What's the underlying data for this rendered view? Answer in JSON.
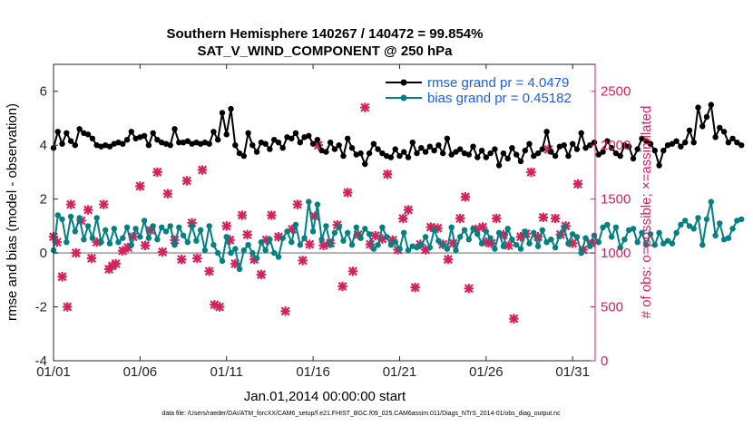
{
  "figure": {
    "title_line1": "Southern Hemisphere 140267 / 140472 = 99.854%",
    "title_line2": "SAT_V_WIND_COMPONENT @ 250 hPa",
    "footnote": "data file: /Users/raeder/DAI/ATM_forcXX/CAM6_setup/f.e21.FHIST_BGC.f09_025.CAM6assim.011/Diags_NTrS_2014-01/obs_diag_output.nc"
  },
  "chart_data": {
    "type": "line",
    "xlabel": "Jan.01,2014 00:00:00 start",
    "ylabel": "rmse and bias (model - observation)",
    "y2label": "# of obs: o=possible; ×=assimilated",
    "xlim": [
      1,
      32.3
    ],
    "ylim": [
      -4,
      7
    ],
    "y2lim": [
      0,
      2750
    ],
    "x_ticks": [
      1,
      6,
      11,
      16,
      21,
      26,
      31
    ],
    "x_tick_labels": [
      "01/01",
      "01/06",
      "01/11",
      "01/16",
      "01/21",
      "01/26",
      "01/31"
    ],
    "y_ticks": [
      -4,
      -2,
      0,
      2,
      4,
      6
    ],
    "y2_ticks": [
      0,
      500,
      1000,
      1500,
      2000,
      2500
    ],
    "grid": false,
    "zero_line": true,
    "legend_position": "top-right",
    "colors": {
      "rmse": "#000000",
      "bias": "#008080",
      "obs": "#d6225a",
      "legend_text": "#1f5fd6",
      "right_axis": "#d6225a",
      "zero_line": "#b0b0b0"
    },
    "legend": [
      "rmse grand pr = 4.0479",
      "bias grand pr = 0.45182"
    ],
    "series": [
      {
        "name": "rmse grand pr = 4.0479",
        "axis": "left",
        "x_start": 1.0,
        "x_step": 0.25,
        "values": [
          3.9,
          4.5,
          4.05,
          4.45,
          4.15,
          4.0,
          4.6,
          4.45,
          4.4,
          4.25,
          4.0,
          3.95,
          4.0,
          3.95,
          4.05,
          4.1,
          4.05,
          4.2,
          4.5,
          4.25,
          4.3,
          4.35,
          4.0,
          4.45,
          4.2,
          4.1,
          4.05,
          4.0,
          4.6,
          4.1,
          4.1,
          4.15,
          4.05,
          4.1,
          4.05,
          4.1,
          4.05,
          4.5,
          4.2,
          5.2,
          4.4,
          5.35,
          4.0,
          3.7,
          3.6,
          4.45,
          4.0,
          3.75,
          4.1,
          4.05,
          3.85,
          4.2,
          4.1,
          3.9,
          4.3,
          4.25,
          4.45,
          4.1,
          4.3,
          4.35,
          4.05,
          4.2,
          3.8,
          3.75,
          4.1,
          3.85,
          4.0,
          3.6,
          4.25,
          3.9,
          3.65,
          3.7,
          3.3,
          3.7,
          4.05,
          3.85,
          3.7,
          3.6,
          3.55,
          3.85,
          3.6,
          3.75,
          3.55,
          4.1,
          3.7,
          3.9,
          3.75,
          3.95,
          3.8,
          4.0,
          3.7,
          4.25,
          3.65,
          3.75,
          3.85,
          3.7,
          3.65,
          3.95,
          3.55,
          3.8,
          3.55,
          3.7,
          3.85,
          3.25,
          3.7,
          3.5,
          3.9,
          3.65,
          3.4,
          3.8,
          4.05,
          3.6,
          3.7,
          3.85,
          4.5,
          3.75,
          3.6,
          3.95,
          4.0,
          3.6,
          4.05,
          3.85,
          4.45,
          3.9,
          4.0,
          4.1,
          3.65,
          3.75,
          4.15,
          3.9,
          3.7,
          3.6,
          4.0,
          3.95,
          3.5,
          3.85,
          4.25,
          4.15,
          4.05,
          3.8,
          3.25,
          3.8,
          4.0,
          4.05,
          4.15,
          3.95,
          4.1,
          4.55,
          4.1,
          5.4,
          4.7,
          5.05,
          5.5,
          4.3,
          4.65,
          4.5,
          4.1,
          4.25,
          4.1,
          4.0
        ]
      },
      {
        "name": "bias grand pr = 0.45182",
        "axis": "left",
        "x_start": 1.0,
        "x_step": 0.25,
        "values": [
          0.1,
          1.4,
          1.25,
          0.4,
          1.35,
          0.8,
          1.3,
          0.5,
          1.0,
          0.55,
          1.3,
          0.4,
          0.85,
          0.35,
          0.9,
          0.4,
          0.55,
          0.95,
          0.3,
          0.9,
          0.6,
          1.2,
          0.55,
          1.0,
          0.5,
          0.95,
          0.8,
          1.0,
          0.3,
          0.95,
          0.65,
          0.4,
          1.0,
          0.45,
          0.85,
          0.1,
          1.0,
          0.3,
          0.0,
          -0.3,
          0.6,
          0.0,
          0.15,
          -0.6,
          0.1,
          0.3,
          0.0,
          -0.2,
          0.4,
          0.1,
          0.5,
          0.0,
          -0.15,
          0.55,
          0.8,
          0.4,
          1.05,
          0.3,
          0.55,
          1.9,
          0.8,
          1.8,
          0.5,
          1.0,
          0.3,
          0.75,
          0.95,
          0.45,
          0.75,
          0.3,
          0.95,
          0.55,
          0.9,
          0.7,
          0.15,
          0.3,
          0.95,
          0.6,
          0.3,
          0.4,
          0.15,
          0.75,
          0.1,
          0.25,
          0.2,
          0.3,
          0.6,
          0.2,
          0.85,
          0.45,
          0.3,
          0.15,
          0.95,
          0.1,
          0.6,
          0.85,
          0.5,
          0.9,
          0.7,
          0.35,
          0.8,
          0.55,
          0.15,
          0.75,
          0.25,
          0.9,
          0.5,
          0.3,
          0.15,
          0.8,
          0.35,
          0.75,
          0.25,
          0.85,
          0.4,
          0.5,
          0.2,
          0.65,
          0.95,
          0.35,
          0.7,
          0.6,
          0.0,
          0.55,
          0.25,
          0.65,
          0.4,
          0.95,
          1.05,
          0.6,
          0.95,
          0.2,
          0.5,
          0.85,
          0.9,
          0.4,
          0.75,
          0.3,
          0.7,
          0.3,
          0.75,
          0.35,
          0.45,
          0.35,
          0.75,
          1.05,
          1.2,
          1.0,
          0.9,
          1.3,
          0.3,
          1.25,
          1.9,
          0.65,
          1.1,
          0.5,
          0.55,
          0.9,
          1.2,
          1.25
        ]
      },
      {
        "name": "obs",
        "axis": "right",
        "x": [
          1.0,
          1.2,
          1.5,
          1.8,
          2.0,
          2.3,
          2.6,
          3.0,
          3.2,
          3.5,
          3.9,
          4.2,
          4.4,
          4.6,
          5.0,
          5.3,
          5.6,
          6.0,
          6.3,
          6.6,
          7.0,
          7.3,
          7.6,
          8.0,
          8.4,
          8.7,
          9.0,
          9.3,
          9.6,
          10.0,
          10.3,
          10.6,
          11.0,
          11.2,
          11.5,
          11.9,
          12.2,
          12.6,
          13.0,
          13.3,
          13.6,
          14.0,
          14.4,
          14.8,
          15.1,
          15.4,
          15.8,
          16.1,
          16.3,
          16.6,
          17.0,
          17.4,
          17.7,
          18.0,
          18.3,
          18.6,
          19.0,
          19.3,
          19.6,
          20.0,
          20.3,
          20.6,
          20.9,
          21.2,
          21.5,
          21.9,
          22.2,
          22.5,
          22.8,
          23.2,
          23.5,
          23.8,
          24.1,
          24.5,
          24.8,
          25.0,
          25.4,
          25.8,
          26.0,
          26.3,
          26.6,
          27.0,
          27.3,
          27.6,
          28.0,
          28.3,
          28.6,
          29.0,
          29.3,
          29.6,
          30.0,
          30.3,
          30.6,
          31.0,
          31.3,
          31.6,
          32.1
        ],
        "values": [
          1150,
          1100,
          780,
          500,
          1450,
          1000,
          1300,
          1400,
          950,
          1100,
          1450,
          850,
          880,
          900,
          1020,
          1050,
          1150,
          1620,
          1070,
          1210,
          1750,
          1010,
          1550,
          1120,
          940,
          1670,
          1280,
          950,
          1770,
          830,
          520,
          500,
          1250,
          1120,
          900,
          1350,
          1170,
          940,
          800,
          1120,
          1350,
          1150,
          460,
          1220,
          1450,
          930,
          1080,
          1340,
          2000,
          1070,
          1090,
          1260,
          690,
          1560,
          830,
          1170,
          2350,
          1080,
          1160,
          1130,
          1730,
          1120,
          1030,
          1320,
          1400,
          680,
          1080,
          1030,
          1240,
          1230,
          1080,
          940,
          1090,
          1320,
          1520,
          670,
          1220,
          1240,
          1100,
          1090,
          1320,
          1170,
          1070,
          390,
          1150,
          1180,
          1750,
          1150,
          1330,
          1960,
          1320,
          1170,
          1250,
          1090,
          1640,
          1030,
          1090
        ]
      }
    ]
  }
}
